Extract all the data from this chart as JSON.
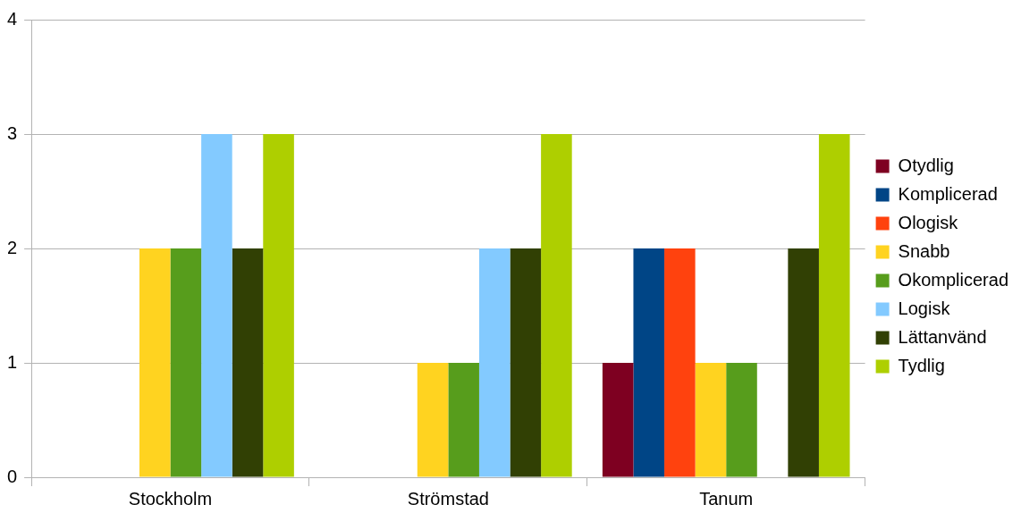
{
  "chart_data": {
    "type": "bar",
    "categories": [
      "Stockholm",
      "Strömstad",
      "Tanum"
    ],
    "series": [
      {
        "name": "Otydlig",
        "color": "#7e0021",
        "values": [
          0,
          0,
          1
        ]
      },
      {
        "name": "Komplicerad",
        "color": "#004586",
        "values": [
          0,
          0,
          2
        ]
      },
      {
        "name": "Ologisk",
        "color": "#ff420e",
        "values": [
          0,
          0,
          2
        ]
      },
      {
        "name": "Snabb",
        "color": "#ffd320",
        "values": [
          2,
          1,
          1
        ]
      },
      {
        "name": "Okomplicerad",
        "color": "#579d1c",
        "values": [
          2,
          1,
          1
        ]
      },
      {
        "name": "Logisk",
        "color": "#83caff",
        "values": [
          3,
          2,
          0
        ]
      },
      {
        "name": "Lättanvänd",
        "color": "#314004",
        "values": [
          2,
          2,
          2
        ]
      },
      {
        "name": "Tydlig",
        "color": "#aecf00",
        "values": [
          3,
          3,
          3
        ]
      }
    ],
    "ylim": [
      0,
      4
    ],
    "yticks": [
      0,
      1,
      2,
      3,
      4
    ],
    "grid": "y",
    "legend": "right"
  }
}
